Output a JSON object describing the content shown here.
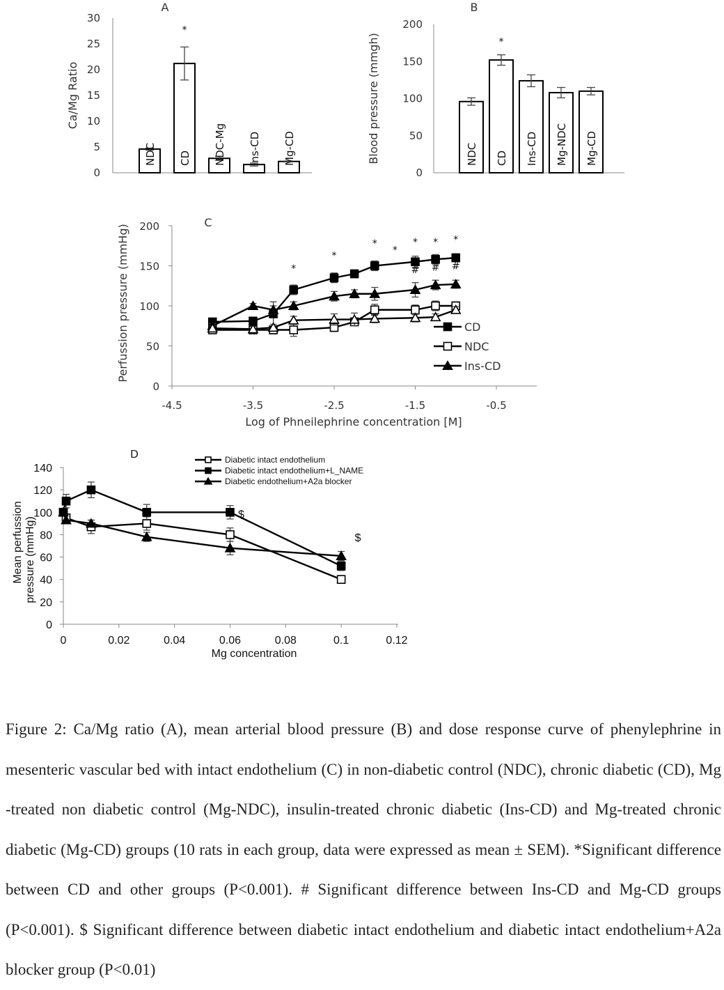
{
  "chart_data": [
    {
      "panel": "A",
      "type": "bar",
      "ylabel": "Ca/Mg Ratio",
      "ylim": [
        0,
        30
      ],
      "yticks": [
        0,
        5,
        10,
        15,
        20,
        25,
        30
      ],
      "categories": [
        "NDC",
        "CD",
        "NDC-Mg",
        "Ins-CD",
        "Mg-CD"
      ],
      "values": [
        4.6,
        21.2,
        2.8,
        1.6,
        2.2
      ],
      "errors": [
        0.2,
        3.2,
        0.4,
        0.3,
        0.1
      ],
      "annotations": [
        {
          "category": "CD",
          "text": "*"
        }
      ]
    },
    {
      "panel": "B",
      "type": "bar",
      "ylabel": "Blood pressure (mmgh)",
      "ylim": [
        0,
        200
      ],
      "yticks": [
        0,
        50,
        100,
        150,
        200
      ],
      "categories": [
        "NDC",
        "CD",
        "Ins-CD",
        "Mg-NDC",
        "Mg-CD"
      ],
      "values": [
        96,
        152,
        124,
        108,
        110
      ],
      "errors": [
        5,
        7,
        8,
        7,
        5
      ],
      "annotations": [
        {
          "category": "CD",
          "text": "*"
        }
      ]
    },
    {
      "panel": "C",
      "type": "line",
      "xlabel": "Log of Phneilephrine concentration [M]",
      "ylabel": "Perfussion pressure (mmHg)",
      "xlim": [
        -4.5,
        -0.5
      ],
      "xticks": [
        -4.5,
        -3.5,
        -2.5,
        -1.5,
        -0.5
      ],
      "ylim": [
        0,
        200
      ],
      "yticks": [
        0,
        50,
        100,
        150,
        200
      ],
      "legend_position": "right",
      "series": [
        {
          "name": "CD",
          "marker": "filled-square",
          "x": [
            -4,
            -3.5,
            -3.25,
            -3,
            -2.5,
            -2.25,
            -2,
            -1.5,
            -1.25,
            -1
          ],
          "y": [
            80,
            81,
            90,
            120,
            135,
            140,
            150,
            155,
            158,
            160
          ],
          "err": [
            4,
            5,
            15,
            6,
            6,
            5,
            6,
            7,
            6,
            5
          ]
        },
        {
          "name": "NDC",
          "marker": "open-square",
          "x": [
            -4,
            -3.5,
            -3.25,
            -3,
            -2.5,
            -2.25,
            -2,
            -1.5,
            -1.25,
            -1
          ],
          "y": [
            70,
            70,
            70,
            70,
            73,
            80,
            95,
            95,
            100,
            100
          ],
          "err": [
            3,
            3,
            5,
            8,
            5,
            5,
            7,
            6,
            6,
            5
          ]
        },
        {
          "name": "Ins-CD",
          "marker": "filled-triangle",
          "x": [
            -4,
            -3.5,
            -3.25,
            -3,
            -2.5,
            -2.25,
            -2,
            -1.5,
            -1.25,
            -1
          ],
          "y": [
            75,
            100,
            95,
            100,
            112,
            115,
            115,
            120,
            126,
            127
          ],
          "err": [
            3,
            3,
            5,
            5,
            6,
            5,
            8,
            9,
            6,
            5
          ]
        },
        {
          "name": "",
          "marker": "open-triangle",
          "x": [
            -4,
            -3.5,
            -3.25,
            -3,
            -2.5,
            -2.25,
            -2,
            -1.5,
            -1.25,
            -1
          ],
          "y": [
            72,
            71,
            73,
            82,
            83,
            83,
            84,
            85,
            86,
            95
          ],
          "err": [
            3,
            3,
            4,
            5,
            7,
            8,
            5,
            5,
            4,
            4
          ]
        }
      ],
      "annotations": [
        {
          "text": "*",
          "x": -3,
          "y": 148
        },
        {
          "text": "*",
          "x": -2.5,
          "y": 164
        },
        {
          "text": "*",
          "x": -2,
          "y": 179
        },
        {
          "text": "*",
          "x": -1.75,
          "y": 171
        },
        {
          "text": "*",
          "x": -1.5,
          "y": 181
        },
        {
          "text": "*",
          "x": -1.25,
          "y": 181
        },
        {
          "text": "*",
          "x": -1,
          "y": 184
        },
        {
          "text": "#",
          "x": -1.5,
          "y": 146
        },
        {
          "text": "#",
          "x": -1.25,
          "y": 149
        },
        {
          "text": "#",
          "x": -1,
          "y": 151
        }
      ]
    },
    {
      "panel": "D",
      "type": "line",
      "xlabel": "Mg concentration",
      "ylabel": "Mean perfussion pressure (mmHg)",
      "xlim": [
        0,
        0.12
      ],
      "xticks": [
        0,
        0.02,
        0.04,
        0.06,
        0.08,
        0.1,
        0.12
      ],
      "ylim": [
        0,
        140
      ],
      "yticks": [
        0,
        20,
        40,
        60,
        80,
        100,
        120,
        140
      ],
      "legend_position": "top",
      "series": [
        {
          "name": "Diabetic intact endothelium",
          "marker": "open-square",
          "x": [
            0,
            0.001,
            0.01,
            0.03,
            0.06,
            0.1
          ],
          "y": [
            100,
            95,
            87,
            90,
            80,
            40
          ],
          "err": [
            0,
            0,
            6,
            6,
            6,
            1
          ]
        },
        {
          "name": "Diabetic intact endothelium+L_NAME",
          "marker": "filled-square",
          "x": [
            0,
            0.001,
            0.01,
            0.03,
            0.06,
            0.1
          ],
          "y": [
            100,
            110,
            120,
            100,
            100,
            52
          ],
          "err": [
            0,
            6,
            7,
            7,
            6,
            4
          ]
        },
        {
          "name": "Diabetic endothelium+A2a blocker",
          "marker": "filled-triangle",
          "x": [
            0,
            0.001,
            0.01,
            0.03,
            0.06,
            0.1
          ],
          "y": [
            100,
            93,
            90,
            78,
            68,
            61
          ],
          "err": [
            0,
            0,
            3,
            4,
            6,
            4
          ]
        }
      ],
      "annotations": [
        {
          "text": "$",
          "x": 0.064,
          "y": 100
        },
        {
          "text": "$",
          "x": 0.106,
          "y": 79
        }
      ]
    }
  ],
  "caption": "Figure 2: Ca/Mg ratio (A), mean arterial blood pressure (B) and dose response curve of phenylephrine in mesenteric vascular bed with intact endothelium (C) in non-diabetic control (NDC), chronic diabetic (CD), Mg -treated non diabetic control (Mg-NDC), insulin-treated chronic diabetic (Ins-CD) and Mg-treated chronic diabetic (Mg-CD) groups (10 rats in each group, data were expressed as mean ± SEM).  *Significant difference between CD and other groups (P<0.001). # Significant difference between Ins-CD and Mg-CD groups (P<0.001). $ Significant difference between diabetic intact endothelium and diabetic intact endothelium+A2a blocker group (P<0.01)"
}
